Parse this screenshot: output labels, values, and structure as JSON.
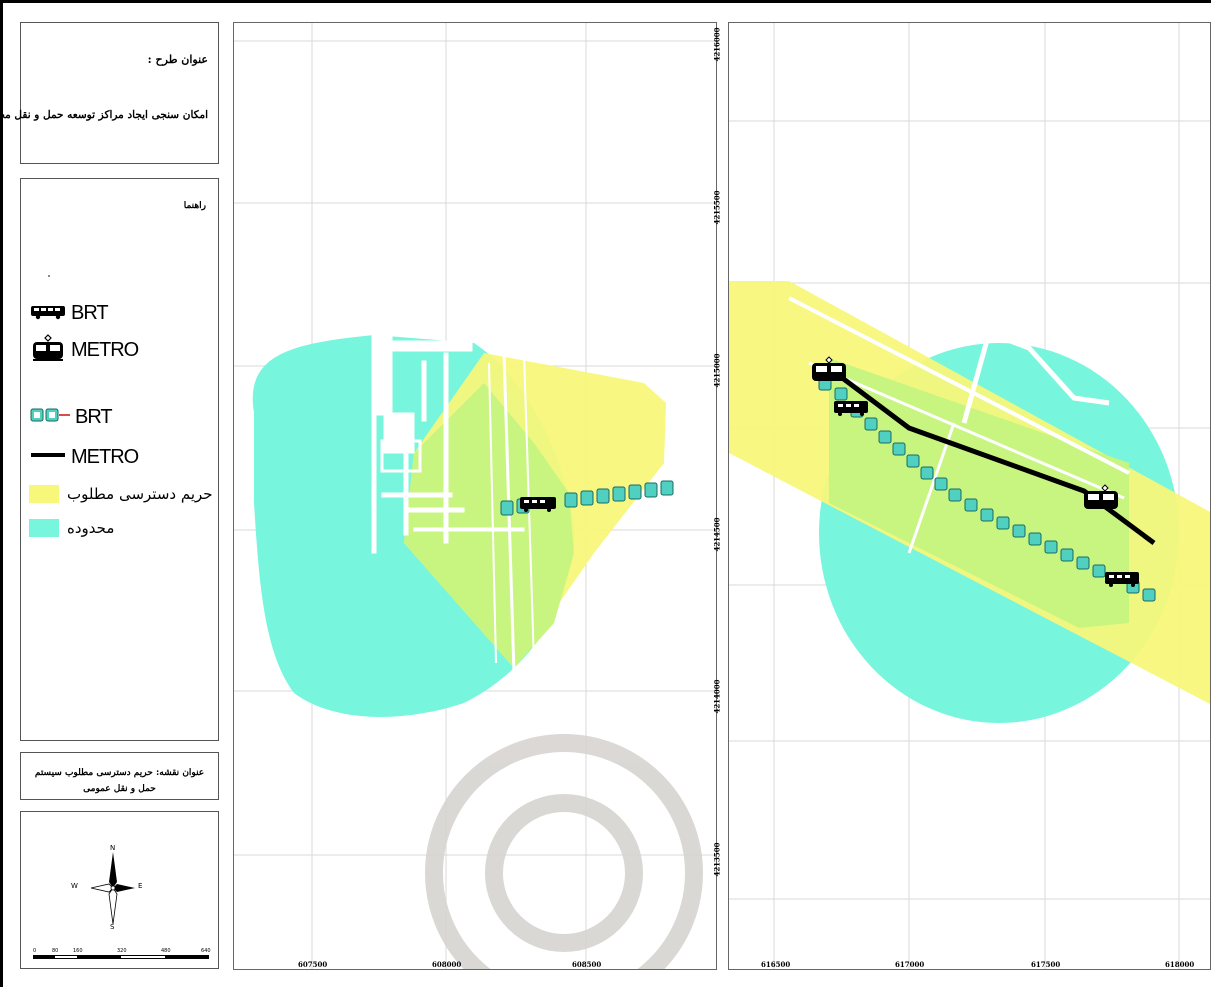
{
  "layout_frame": {
    "color": "#000000"
  },
  "title_box": {
    "label": "عنوان طرح :",
    "value": "امکان سنجی ایجاد مراکز توسعه حمل و نقل محور"
  },
  "legend": {
    "heading": "راهنما",
    "items": [
      {
        "label": "BRT",
        "icon": "bus-stop-icon"
      },
      {
        "label": "METRO",
        "icon": "metro-station-icon"
      },
      {
        "label": "BRT",
        "icon": "brt-line-icon"
      },
      {
        "label": "METRO",
        "icon": "metro-line-icon"
      },
      {
        "label": "حریم دسترسی مطلوب",
        "icon": "yellow-swatch",
        "color": "#f7f77a"
      },
      {
        "label": "محدوده",
        "icon": "cyan-swatch",
        "color": "#78f5dd"
      }
    ]
  },
  "map_title": {
    "line1": "عنوان نقشه: حریم دسترسی مطلوب سیستم",
    "line2": "حمل و نقل عمومی"
  },
  "compass": {
    "n": "N",
    "s": "S",
    "e": "E",
    "w": "W"
  },
  "scale_bar": {
    "labels": [
      "0",
      "80",
      "160",
      "320",
      "480",
      "640"
    ]
  },
  "map_left": {
    "x_ticks": [
      "607500",
      "608000",
      "608500"
    ]
  },
  "map_right": {
    "x_ticks": [
      "616500",
      "617000",
      "617500",
      "618000"
    ]
  },
  "y_ticks": [
    "4216000",
    "4215500",
    "4215000",
    "4214500",
    "4214000",
    "4213500"
  ],
  "colors": {
    "access_zone": "#f7f77a",
    "area": "#78f5dd",
    "overlap": "#c8f580",
    "metro_line": "#000000",
    "brt_stop": "#4fd0c0"
  }
}
